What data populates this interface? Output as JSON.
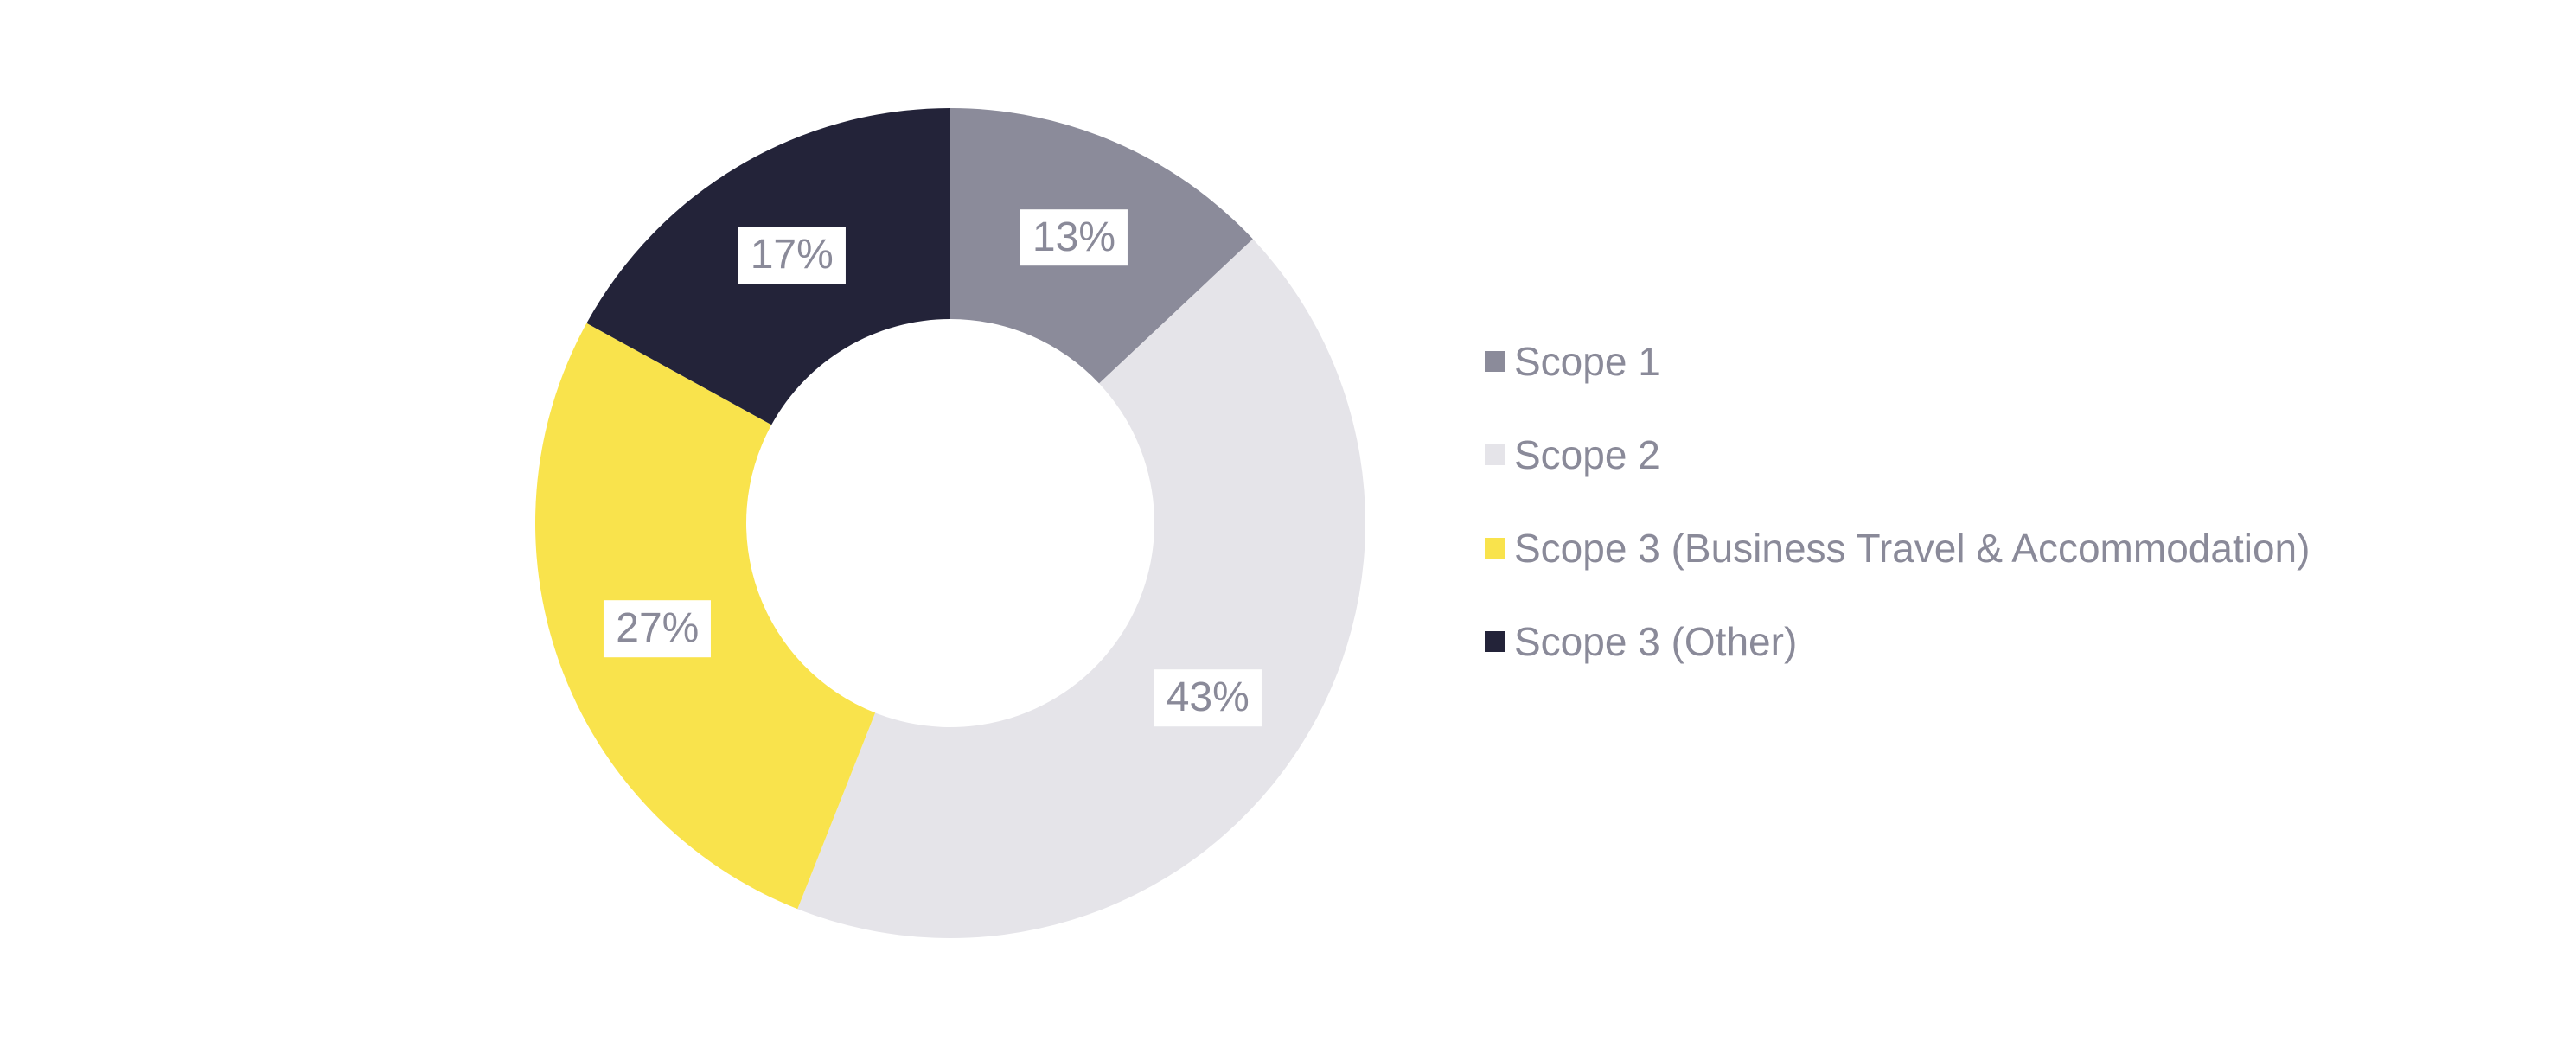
{
  "page": {
    "background": "#FFFFFF"
  },
  "chart_data": {
    "type": "pie",
    "subtype": "donut",
    "title": "",
    "series": [
      {
        "label": "Scope 1",
        "value": 13,
        "display": "13%",
        "color": "#8B8B9A"
      },
      {
        "label": "Scope 2",
        "value": 43,
        "display": "43%",
        "color": "#E5E4E9"
      },
      {
        "label": "Scope 3 (Business Travel & Accommodation)",
        "value": 27,
        "display": "27%",
        "color": "#F9E34C"
      },
      {
        "label": "Scope 3 (Other)",
        "value": 17,
        "display": "17%",
        "color": "#232339"
      }
    ],
    "total": 100,
    "start_angle_deg": 0,
    "direction": "clockwise",
    "geometry": {
      "cx": 1099,
      "cy": 605,
      "outer_radius": 480,
      "inner_radius": 236,
      "label_radius": 360
    },
    "data_labels": {
      "background": "#FFFFFF",
      "text_color": "#8A8A99"
    },
    "legend_position": "right",
    "legend_text_color": "#8A8A99",
    "grid": false
  }
}
